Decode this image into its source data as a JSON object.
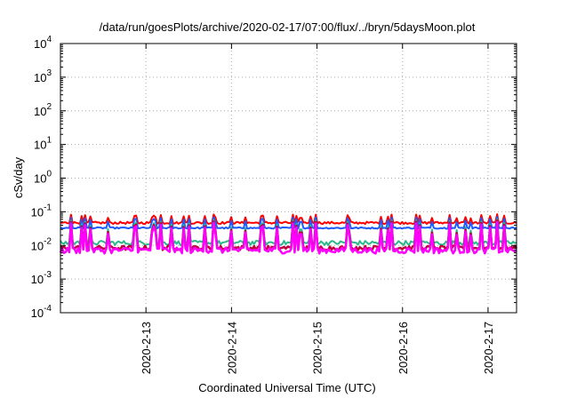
{
  "chart_data": {
    "type": "line",
    "title": "/data/run/goesPlots/archive/2020-02-17/07:00/flux/../bryn/5daysMoon.plot",
    "xlabel": "Coordinated Universal Time (UTC)",
    "ylabel": "cSv/day",
    "yscale": "log",
    "ylim": [
      0.0001,
      10000
    ],
    "y_ticks": [
      {
        "base": "10",
        "exp": "-4"
      },
      {
        "base": "10",
        "exp": "-3"
      },
      {
        "base": "10",
        "exp": "-2"
      },
      {
        "base": "10",
        "exp": "-1"
      },
      {
        "base": "10",
        "exp": "0"
      },
      {
        "base": "10",
        "exp": "1"
      },
      {
        "base": "10",
        "exp": "2"
      },
      {
        "base": "10",
        "exp": "3"
      },
      {
        "base": "10",
        "exp": "4"
      }
    ],
    "xlim": [
      "2020-02-12T00:00",
      "2020-02-17T08:00"
    ],
    "x_ticks": [
      {
        "date": "2020-02-13",
        "label": "2020-2-13"
      },
      {
        "date": "2020-02-14",
        "label": "2020-2-14"
      },
      {
        "date": "2020-02-15",
        "label": "2020-2-15"
      },
      {
        "date": "2020-02-16",
        "label": "2020-2-16"
      },
      {
        "date": "2020-02-17",
        "label": "2020-2-17"
      }
    ],
    "grid": true,
    "series": [
      {
        "color": "#ff0000",
        "baseline": 0.047,
        "spike_peak": 0.085,
        "noise": 0.08
      },
      {
        "color": "#1e5bff",
        "baseline": 0.033,
        "spike_peak": 0.07,
        "noise": 0.05
      },
      {
        "color": "#2ab88c",
        "baseline": 0.012,
        "spike_peak": 0.06,
        "noise": 0.15
      },
      {
        "color": "#c0003c",
        "baseline": 0.0085,
        "spike_peak": 0.055,
        "noise": 0.15
      },
      {
        "color": "#ff00ff",
        "baseline": 0.0072,
        "spike_peak": 0.05,
        "noise": 0.2
      }
    ]
  }
}
